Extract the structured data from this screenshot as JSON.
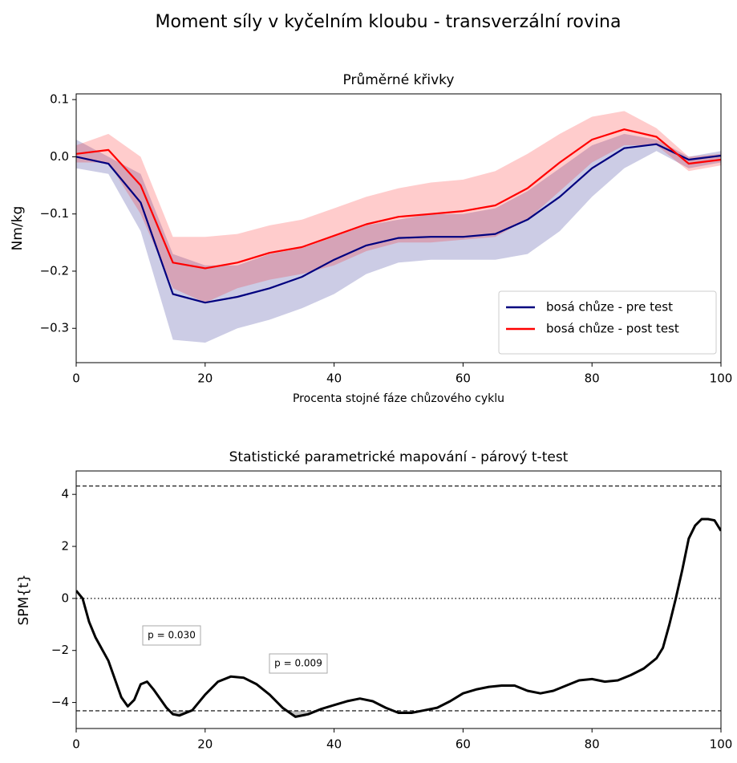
{
  "title": "Moment síly v kyčelním kloubu - transverzální rovina",
  "chart_data": [
    {
      "type": "line",
      "title": "Průměrné křivky",
      "xlabel": "Procenta stojné fáze chůzového cyklu",
      "ylabel": "Nm/kg",
      "x": [
        0,
        5,
        10,
        15,
        20,
        25,
        30,
        35,
        40,
        45,
        50,
        55,
        60,
        65,
        70,
        75,
        80,
        85,
        90,
        95,
        100
      ],
      "series": [
        {
          "name": "bosá chůze - pre test",
          "color": "#00007f",
          "values": [
            0.0,
            -0.012,
            -0.08,
            -0.24,
            -0.255,
            -0.245,
            -0.23,
            -0.21,
            -0.18,
            -0.155,
            -0.142,
            -0.14,
            -0.14,
            -0.135,
            -0.11,
            -0.07,
            -0.02,
            0.015,
            0.022,
            -0.005,
            0.002
          ],
          "band_upper": [
            0.03,
            0.0,
            -0.03,
            -0.17,
            -0.19,
            -0.19,
            -0.17,
            -0.16,
            -0.14,
            -0.12,
            -0.11,
            -0.1,
            -0.1,
            -0.09,
            -0.06,
            -0.02,
            0.02,
            0.04,
            0.03,
            0.0,
            0.01
          ],
          "band_lower": [
            -0.02,
            -0.03,
            -0.13,
            -0.32,
            -0.325,
            -0.3,
            -0.285,
            -0.265,
            -0.24,
            -0.205,
            -0.185,
            -0.18,
            -0.18,
            -0.18,
            -0.17,
            -0.13,
            -0.07,
            -0.02,
            0.01,
            -0.02,
            -0.01
          ]
        },
        {
          "name": "bosá chůze - post test",
          "color": "#ff0000",
          "values": [
            0.005,
            0.012,
            -0.05,
            -0.185,
            -0.195,
            -0.185,
            -0.168,
            -0.158,
            -0.138,
            -0.118,
            -0.105,
            -0.1,
            -0.095,
            -0.085,
            -0.055,
            -0.01,
            0.03,
            0.048,
            0.035,
            -0.012,
            -0.005
          ],
          "band_upper": [
            0.02,
            0.04,
            0.0,
            -0.14,
            -0.14,
            -0.135,
            -0.12,
            -0.11,
            -0.09,
            -0.07,
            -0.055,
            -0.045,
            -0.04,
            -0.025,
            0.005,
            0.04,
            0.07,
            0.08,
            0.05,
            0.0,
            0.005
          ],
          "band_lower": [
            -0.01,
            -0.01,
            -0.1,
            -0.23,
            -0.255,
            -0.23,
            -0.215,
            -0.205,
            -0.19,
            -0.165,
            -0.15,
            -0.15,
            -0.145,
            -0.14,
            -0.11,
            -0.06,
            -0.01,
            0.02,
            0.02,
            -0.025,
            -0.015
          ]
        }
      ],
      "xlim": [
        0,
        100
      ],
      "xticks": [
        0,
        20,
        40,
        60,
        80,
        100
      ],
      "ylim": [
        -0.36,
        0.11
      ],
      "yticks": [
        {
          "value": 0.1,
          "label": "0.1"
        },
        {
          "value": 0,
          "label": "0.0"
        },
        {
          "value": -0.1,
          "label": "−0.1"
        },
        {
          "value": -0.2,
          "label": "−0.2"
        },
        {
          "value": -0.3,
          "label": "−0.3"
        }
      ],
      "legend": "lower right"
    },
    {
      "type": "line",
      "title": "Statistické parametrické mapování - párový t-test",
      "ylabel": "SPM{t}",
      "x": [
        0,
        1,
        2,
        3,
        5,
        7,
        8,
        9,
        10,
        11,
        12,
        14,
        15,
        16,
        18,
        20,
        22,
        24,
        26,
        28,
        30,
        32,
        34,
        36,
        38,
        40,
        42,
        44,
        46,
        48,
        50,
        52,
        54,
        56,
        58,
        60,
        62,
        64,
        66,
        68,
        70,
        72,
        74,
        76,
        78,
        80,
        82,
        84,
        86,
        88,
        90,
        91,
        92,
        93,
        94,
        95,
        96,
        97,
        98,
        99,
        100
      ],
      "series": [
        {
          "color": "#000000",
          "values": [
            0.3,
            0.0,
            -0.9,
            -1.5,
            -2.4,
            -3.8,
            -4.15,
            -3.9,
            -3.3,
            -3.2,
            -3.5,
            -4.2,
            -4.45,
            -4.5,
            -4.3,
            -3.7,
            -3.2,
            -3.0,
            -3.05,
            -3.3,
            -3.7,
            -4.2,
            -4.55,
            -4.45,
            -4.25,
            -4.1,
            -3.95,
            -3.85,
            -3.95,
            -4.2,
            -4.4,
            -4.4,
            -4.3,
            -4.2,
            -3.95,
            -3.65,
            -3.5,
            -3.4,
            -3.35,
            -3.35,
            -3.55,
            -3.65,
            -3.55,
            -3.35,
            -3.15,
            -3.1,
            -3.2,
            -3.15,
            -2.95,
            -2.7,
            -2.3,
            -1.9,
            -1.0,
            0.0,
            1.1,
            2.3,
            2.8,
            3.05,
            3.05,
            3.0,
            2.6
          ]
        }
      ],
      "threshold": [
        4.32,
        -4.32
      ],
      "zero_line": true,
      "annotations": [
        "p = 0.030",
        "p = 0.009"
      ],
      "xlim": [
        0,
        100
      ],
      "xticks": [
        0,
        20,
        40,
        60,
        80,
        100
      ],
      "ylim": [
        -5.0,
        4.9
      ],
      "yticks": [
        4,
        2,
        0,
        {
          "value": -2,
          "label": "−2"
        },
        {
          "value": -4,
          "label": "−4"
        }
      ]
    }
  ]
}
